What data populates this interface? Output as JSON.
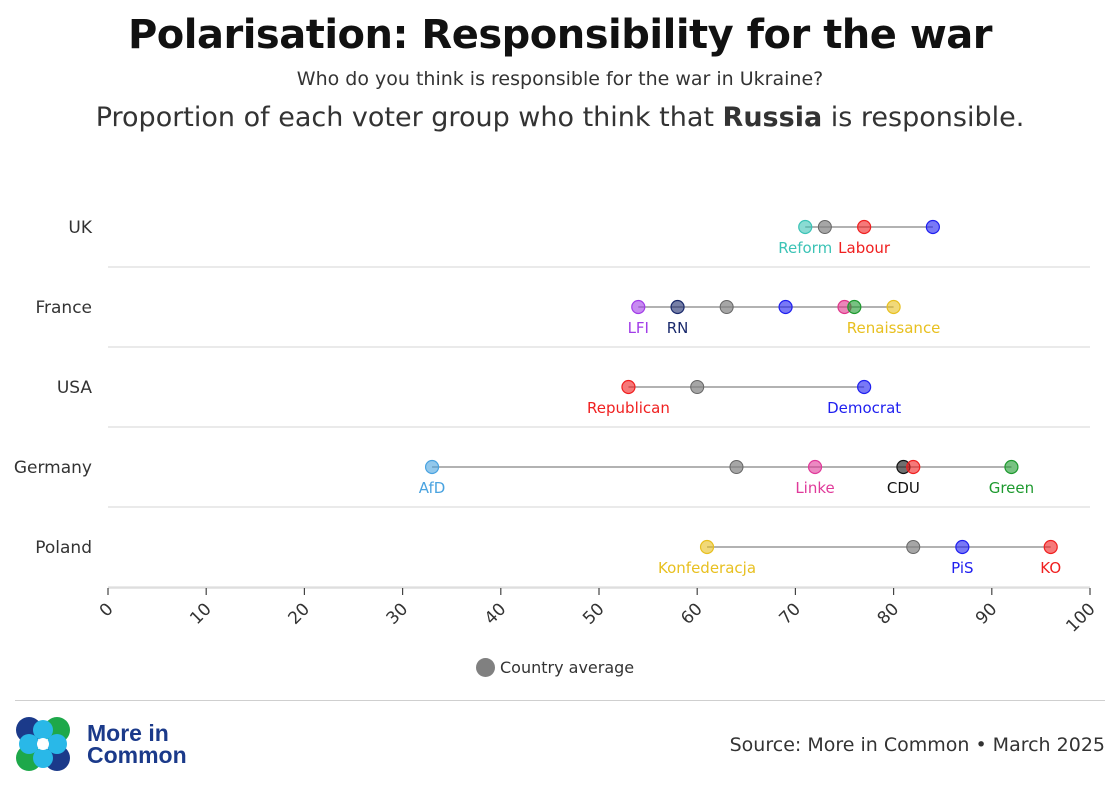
{
  "title": "Polarisation: Responsibility for the war",
  "subtitle": "Who do you think is responsible for the war in Ukraine?",
  "question": {
    "prefix": "Proportion of each voter group who think that ",
    "emphasis": "Russia",
    "suffix": " is responsible."
  },
  "legend": {
    "label": "Country average",
    "color": "#808080"
  },
  "logo": {
    "line1": "More in",
    "line2": "Common"
  },
  "source": "Source: More in Common • March 2025",
  "chart_data": {
    "type": "dot-range",
    "xlim": [
      0,
      100
    ],
    "xticks": [
      0,
      10,
      20,
      30,
      40,
      50,
      60,
      70,
      80,
      90,
      100
    ],
    "average_color": "#808080",
    "countries": [
      {
        "name": "UK",
        "average": 73,
        "parties": [
          {
            "name": "Reform",
            "value": 71,
            "color": "#3cc3b6",
            "label": true
          },
          {
            "name": "Labour",
            "value": 77,
            "color": "#f02020",
            "label": true
          },
          {
            "name": "",
            "value": 84,
            "color": "#1f1ff0",
            "label": false
          }
        ]
      },
      {
        "name": "France",
        "average": 63,
        "parties": [
          {
            "name": "LFI",
            "value": 54,
            "color": "#a23de8",
            "label": true
          },
          {
            "name": "RN",
            "value": 58,
            "color": "#1a2a6c",
            "label": true
          },
          {
            "name": "",
            "value": 69,
            "color": "#1f1ff0",
            "label": false
          },
          {
            "name": "",
            "value": 75,
            "color": "#e0358a",
            "label": false
          },
          {
            "name": "",
            "value": 76,
            "color": "#1e9a2f",
            "label": false
          },
          {
            "name": "Renaissance",
            "value": 80,
            "color": "#e8c020",
            "label": true
          }
        ]
      },
      {
        "name": "USA",
        "average": 60,
        "parties": [
          {
            "name": "Republican",
            "value": 53,
            "color": "#f02020",
            "label": true
          },
          {
            "name": "Democrat",
            "value": 77,
            "color": "#1f1ff0",
            "label": true
          }
        ]
      },
      {
        "name": "Germany",
        "average": 64,
        "parties": [
          {
            "name": "AfD",
            "value": 33,
            "color": "#4aa3e0",
            "label": true
          },
          {
            "name": "Linke",
            "value": 72,
            "color": "#e03a9a",
            "label": true
          },
          {
            "name": "CDU",
            "value": 81,
            "color": "#111111",
            "label": true
          },
          {
            "name": "",
            "value": 82,
            "color": "#f02020",
            "label": false
          },
          {
            "name": "Green",
            "value": 92,
            "color": "#1e9a2f",
            "label": true
          }
        ]
      },
      {
        "name": "Poland",
        "average": 82,
        "parties": [
          {
            "name": "Konfederacja",
            "value": 61,
            "color": "#e8c020",
            "label": true
          },
          {
            "name": "PiS",
            "value": 87,
            "color": "#1f1ff0",
            "label": true
          },
          {
            "name": "KO",
            "value": 96,
            "color": "#f02020",
            "label": true
          }
        ]
      }
    ]
  }
}
